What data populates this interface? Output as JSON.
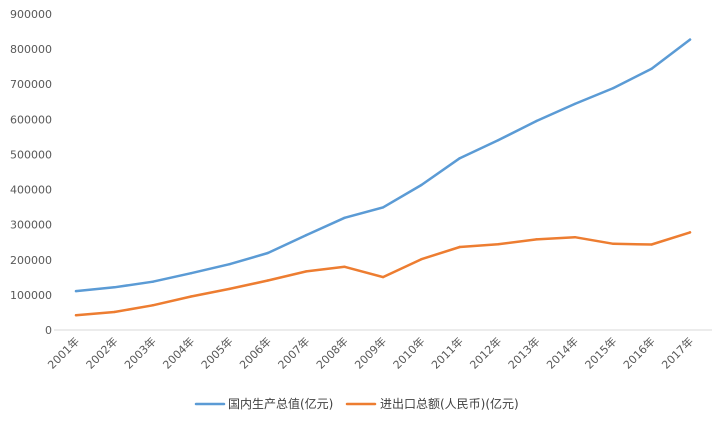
{
  "chart_data": {
    "type": "line",
    "title": "",
    "xlabel": "",
    "ylabel": "",
    "categories": [
      "2001年",
      "2002年",
      "2003年",
      "2004年",
      "2005年",
      "2006年",
      "2007年",
      "2008年",
      "2009年",
      "2010年",
      "2011年",
      "2012年",
      "2013年",
      "2014年",
      "2015年",
      "2016年",
      "2017年"
    ],
    "ylim": [
      0,
      900000
    ],
    "yticks": [
      "0",
      "100000",
      "200000",
      "300000",
      "400000",
      "500000",
      "600000",
      "700000",
      "800000",
      "900000"
    ],
    "grid": false,
    "legend_position": "bottom",
    "series": [
      {
        "name": "国内生产总值(亿元)",
        "color": "#5B9BD5",
        "values": [
          110863,
          121717,
          137422,
          161840,
          187319,
          219439,
          270232,
          319516,
          349081,
          413030,
          489301,
          540367,
          595244,
          643974,
          689052,
          744127,
          827122
        ]
      },
      {
        "name": "进出口总额(人民币)(亿元)",
        "color": "#ED7D31",
        "values": [
          42184,
          51378,
          70484,
          95539,
          116922,
          140975,
          166924,
          179922,
          150648,
          201722,
          236402,
          244160,
          258169,
          264242,
          245503,
          243386,
          278099
        ]
      }
    ]
  }
}
